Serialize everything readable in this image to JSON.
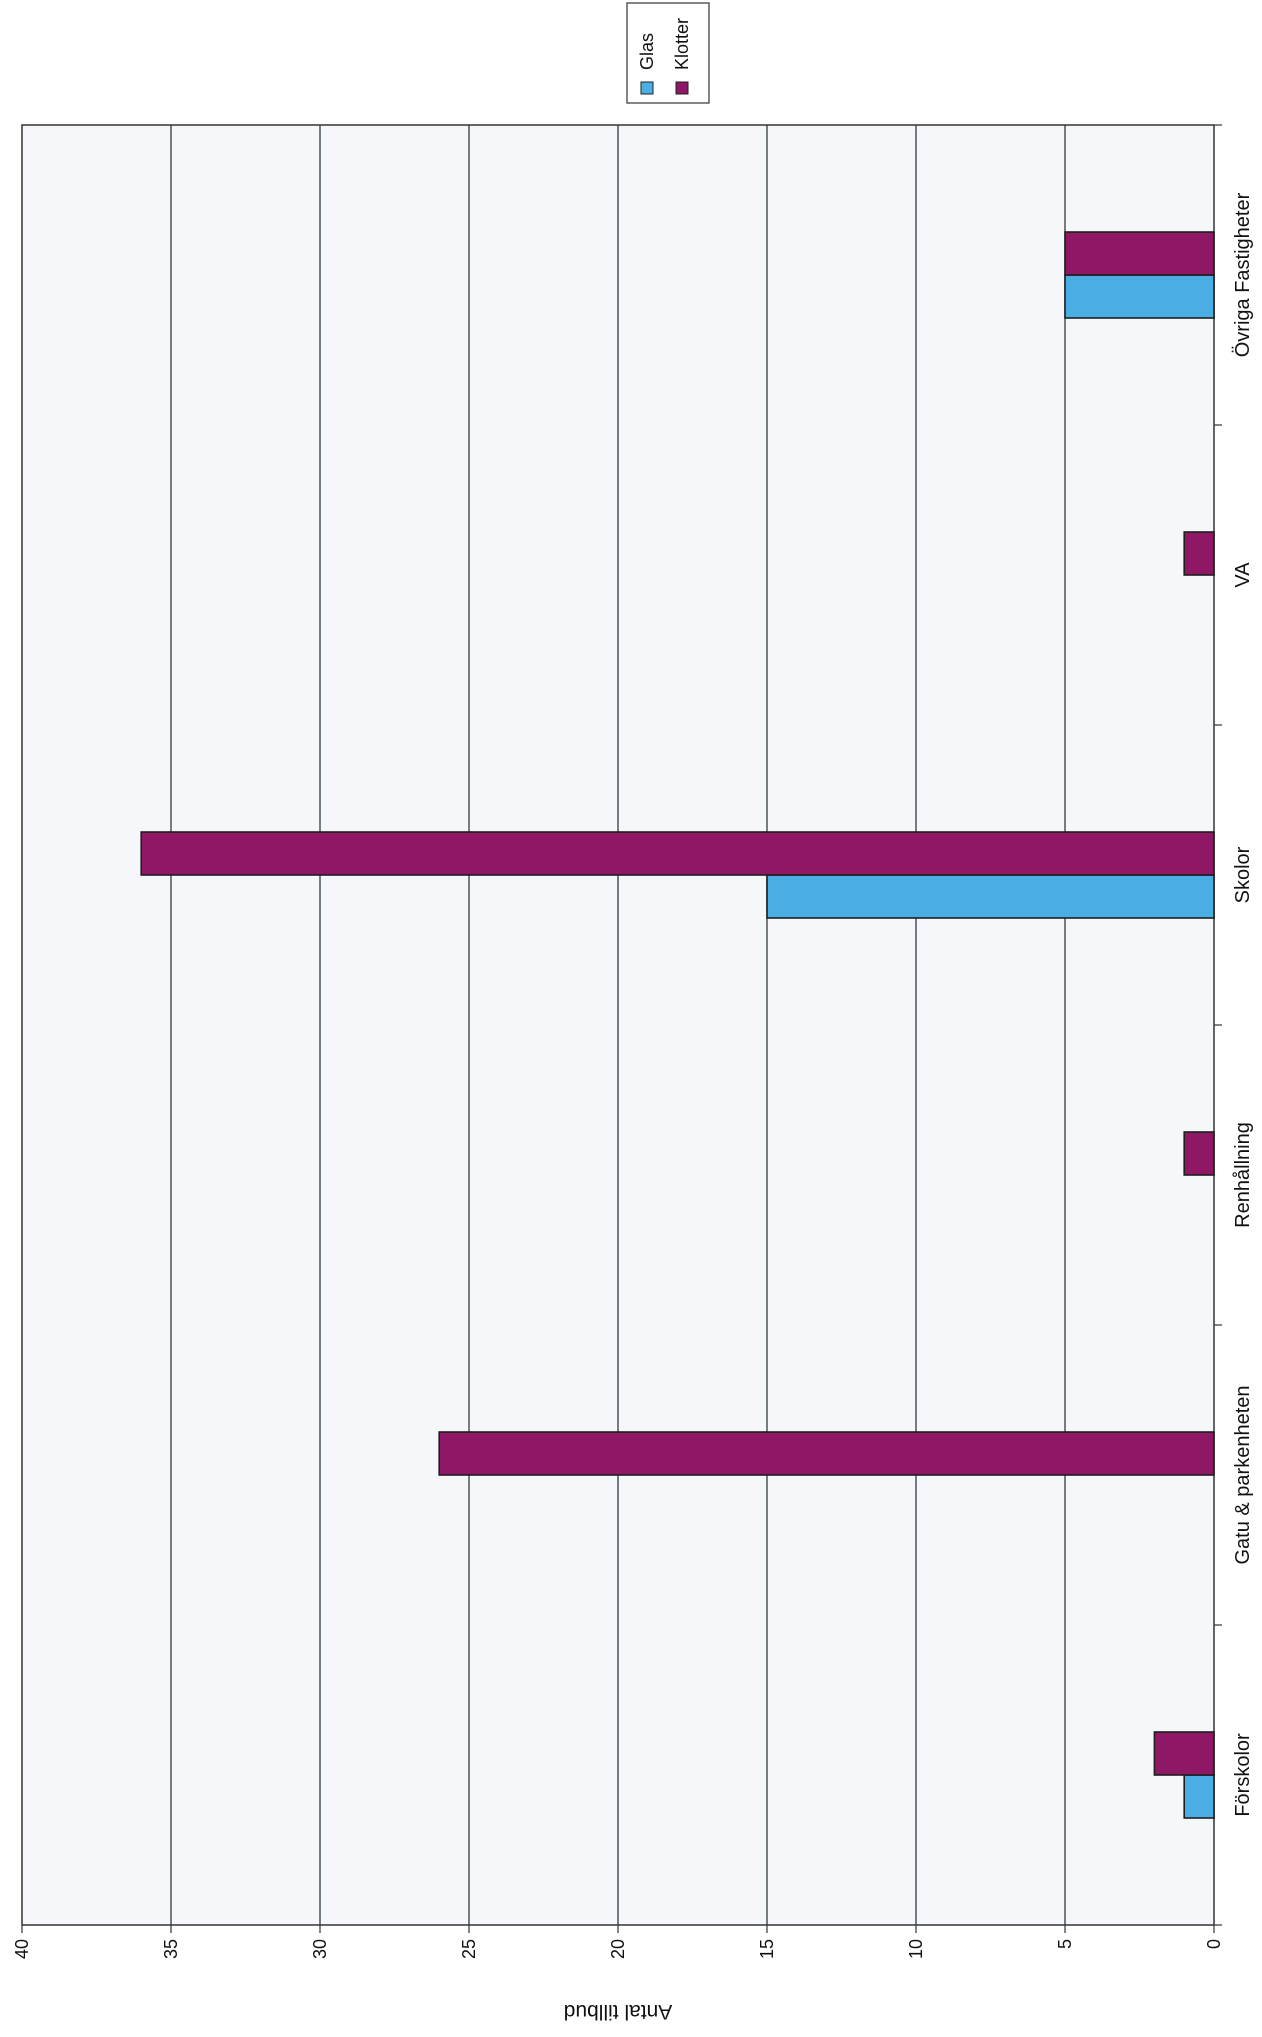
{
  "chart_data": {
    "type": "bar",
    "orientation": "horizontal",
    "page_rotation": "rotated 90 degrees clockwise (chart printed in landscape on a portrait page)",
    "categories": [
      "Förskolor",
      "Gatu & parkenheten",
      "Renhållning",
      "Skolor",
      "VA",
      "Övriga Fastigheter"
    ],
    "series": [
      {
        "name": "Glas",
        "color": "#4aaee4",
        "values": [
          1,
          0,
          0,
          15,
          0,
          5
        ]
      },
      {
        "name": "Klotter",
        "color": "#8e1866",
        "values": [
          2,
          26,
          1,
          36,
          1,
          5
        ]
      }
    ],
    "value_axis": {
      "label": "Antal tillbud",
      "range": [
        0,
        40
      ],
      "ticks": [
        "0",
        "5",
        "10",
        "15",
        "20",
        "25",
        "30",
        "35",
        "40"
      ]
    },
    "grid": true,
    "legend": {
      "position": "top-right",
      "entries": [
        "Glas",
        "Klotter"
      ]
    },
    "background_color": "#f6f7fb",
    "gridline_color": "#2d3d3d"
  }
}
